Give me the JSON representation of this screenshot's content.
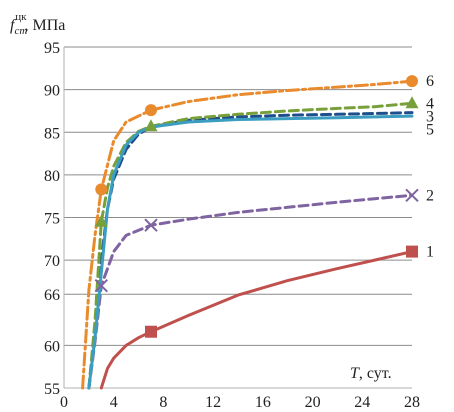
{
  "chart_data": {
    "type": "line",
    "ylabel": {
      "symbol": "f",
      "subscript": "cm",
      "superscript": "цк",
      "unit": ", МПа"
    },
    "xlabel": {
      "symbol": "T",
      "unit": ", сут."
    },
    "xlim": [
      0,
      28
    ],
    "ylim": [
      55,
      95
    ],
    "x_ticks": [
      0,
      4,
      8,
      12,
      16,
      20,
      24,
      28
    ],
    "y_ticks": [
      55,
      60,
      66,
      70,
      75,
      80,
      85,
      90,
      95
    ],
    "grid": "horizontal",
    "series": [
      {
        "name": "1",
        "color": "#c0504d",
        "dash": "solid",
        "marker": "square",
        "marker_x": [
          7,
          28
        ],
        "x": [
          3.0,
          3.5,
          4.0,
          5.0,
          6.0,
          7.0,
          10.0,
          14.0,
          18.0,
          22.0,
          25.0,
          28.0
        ],
        "y": [
          55.0,
          57.3,
          58.5,
          60.0,
          60.9,
          61.6,
          63.5,
          65.9,
          67.6,
          69.0,
          70.0,
          71.0
        ]
      },
      {
        "name": "2",
        "color": "#8064a2",
        "dash": "dashed",
        "marker": "x",
        "marker_x": [
          3,
          7,
          28
        ],
        "x": [
          2.0,
          2.5,
          3.0,
          4.0,
          5.0,
          7.0,
          10.0,
          14.0,
          18.0,
          22.0,
          25.0,
          28.0
        ],
        "y": [
          55.0,
          60.5,
          67.0,
          71.0,
          72.9,
          74.1,
          74.8,
          75.6,
          76.2,
          76.8,
          77.2,
          77.6
        ]
      },
      {
        "name": "3",
        "color": "#1f4e8c",
        "dash": "dashed",
        "marker": "none",
        "marker_x": [],
        "x": [
          2.0,
          2.5,
          3.0,
          3.5,
          4.0,
          5.0,
          6.0,
          7.0,
          10.0,
          14.0,
          18.0,
          22.0,
          25.0,
          28.0
        ],
        "y": [
          55.0,
          62.0,
          70.0,
          76.0,
          79.5,
          83.0,
          84.8,
          85.6,
          86.4,
          86.8,
          87.0,
          87.1,
          87.2,
          87.3
        ]
      },
      {
        "name": "4",
        "color": "#77a03a",
        "dash": "dashed",
        "marker": "triangle",
        "marker_x": [
          3,
          7,
          28
        ],
        "x": [
          2.0,
          2.5,
          3.0,
          3.5,
          4.0,
          5.0,
          6.0,
          7.0,
          10.0,
          14.0,
          18.0,
          22.0,
          25.0,
          28.0
        ],
        "y": [
          55.0,
          63.0,
          74.5,
          78.5,
          81.0,
          83.8,
          85.1,
          85.7,
          86.6,
          87.1,
          87.5,
          87.8,
          88.0,
          88.4
        ]
      },
      {
        "name": "5",
        "color": "#3b9dbf",
        "dash": "solid",
        "marker": "none",
        "marker_x": [],
        "x": [
          2.0,
          2.5,
          3.0,
          3.5,
          4.0,
          5.0,
          6.0,
          7.0,
          10.0,
          14.0,
          18.0,
          22.0,
          25.0,
          28.0
        ],
        "y": [
          55.0,
          61.0,
          68.5,
          76.0,
          80.0,
          83.5,
          85.0,
          85.6,
          86.2,
          86.5,
          86.6,
          86.7,
          86.8,
          86.9
        ]
      },
      {
        "name": "6",
        "color": "#e98a2c",
        "dash": "dashdot",
        "marker": "circle",
        "marker_x": [
          3,
          7,
          28
        ],
        "x": [
          1.5,
          2.0,
          2.5,
          3.0,
          4.0,
          5.0,
          7.0,
          10.0,
          14.0,
          18.0,
          22.0,
          25.0,
          28.0
        ],
        "y": [
          55.0,
          66.5,
          73.0,
          78.3,
          84.0,
          86.2,
          87.6,
          88.6,
          89.4,
          89.9,
          90.3,
          90.6,
          91.0
        ]
      }
    ]
  }
}
